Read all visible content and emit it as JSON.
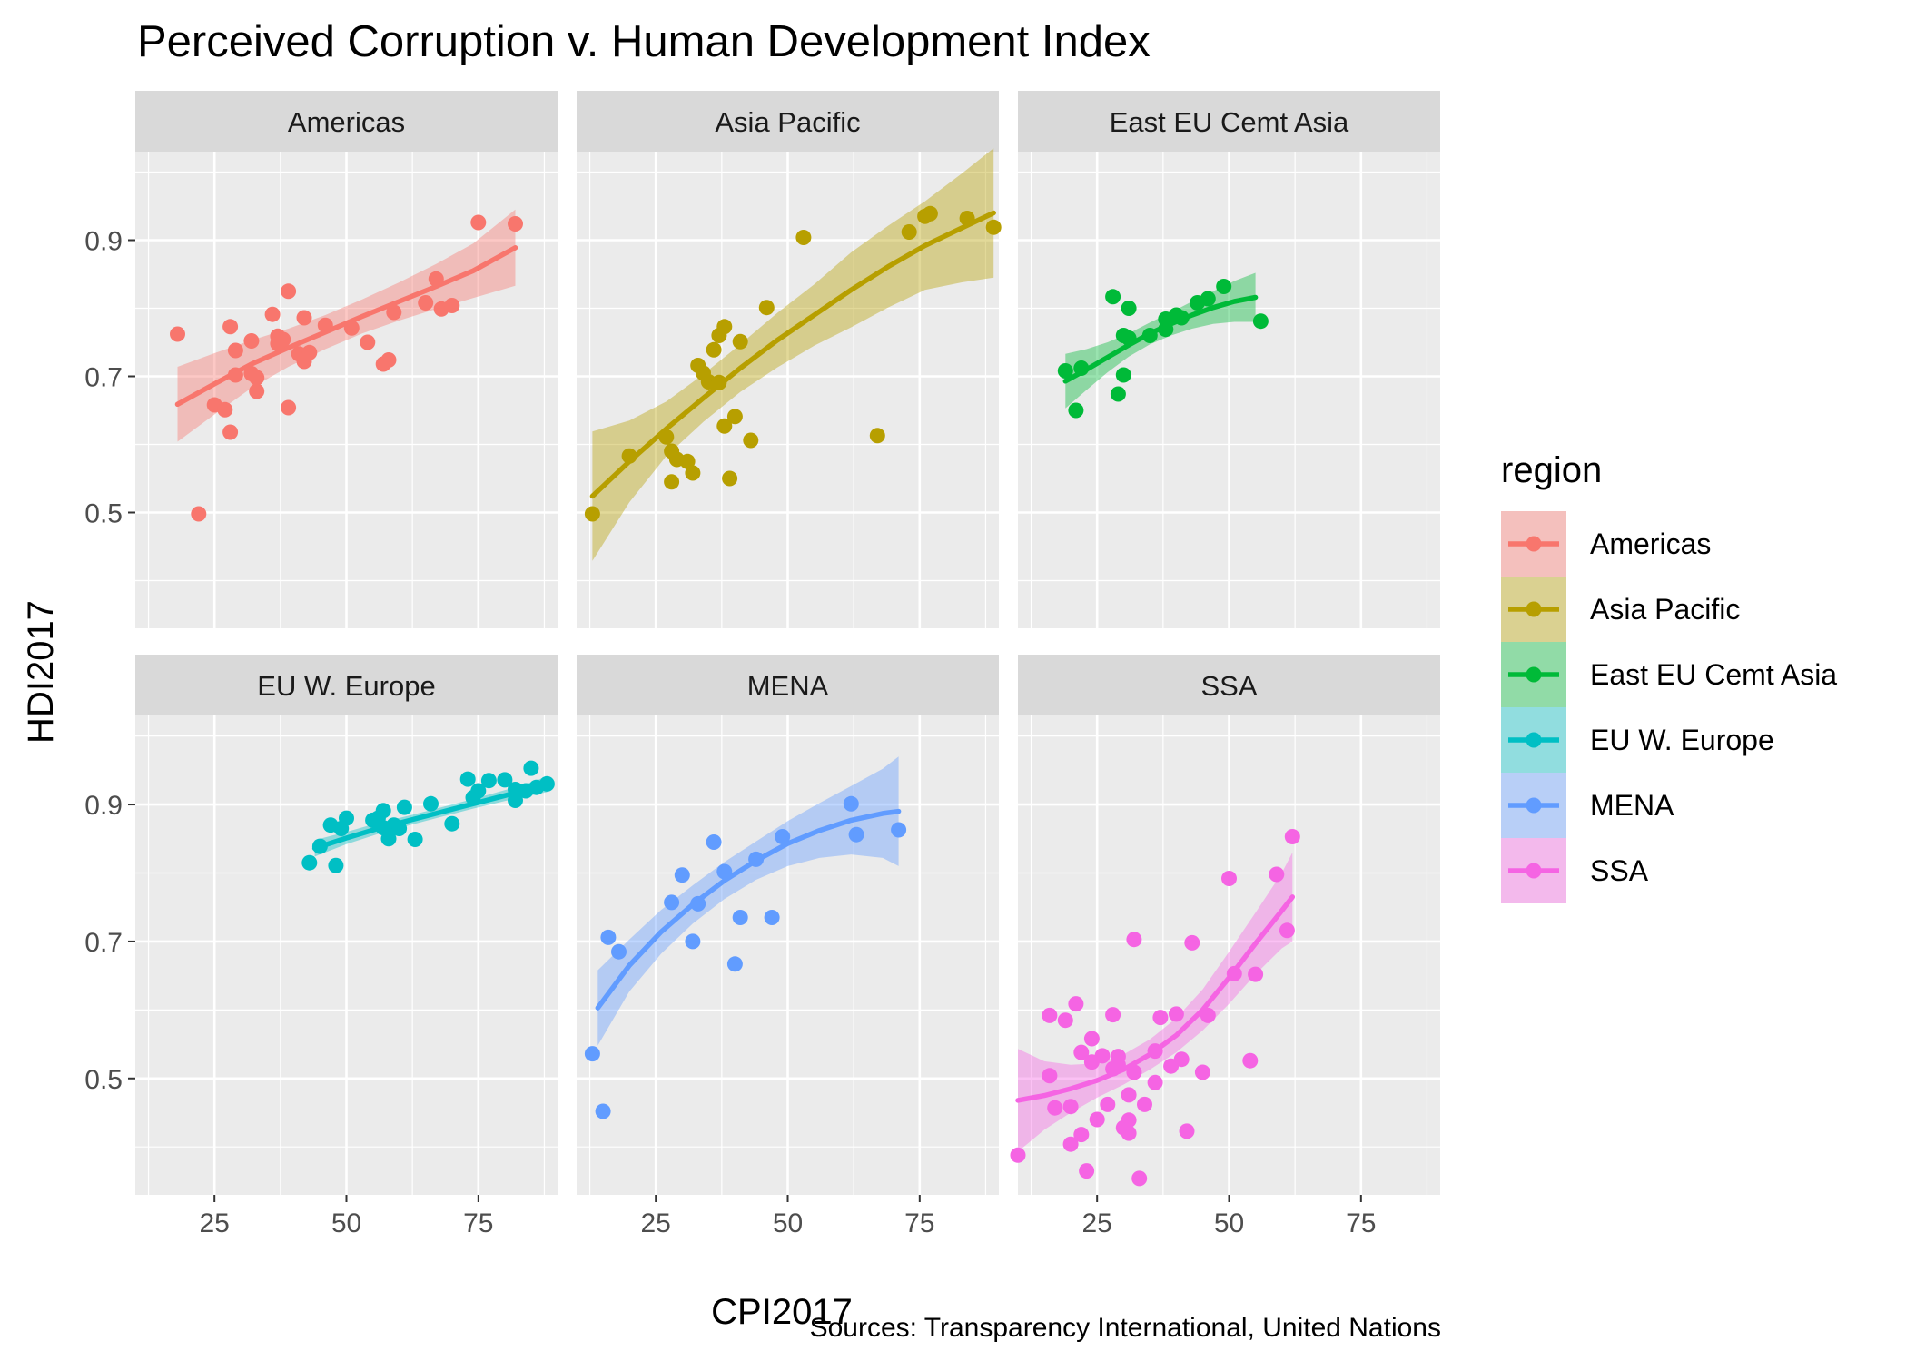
{
  "chart_data": {
    "type": "scatter",
    "title": "Perceived Corruption v. Human Development Index",
    "xlabel": "CPI2017",
    "ylabel": "HDI2017",
    "caption": "Sources: Transparency International, United Nations",
    "legend": {
      "title": "region",
      "position": "right"
    },
    "grid": true,
    "xlim": [
      10,
      90
    ],
    "ylim": [
      0.33,
      1.03
    ],
    "x_ticks": [
      "25",
      "50",
      "75"
    ],
    "y_ticks": [
      "0.5",
      "0.7",
      "0.9"
    ],
    "panels": [
      {
        "name": "Americas",
        "color": "#F8766D",
        "points": [
          [
            18,
            0.762
          ],
          [
            22,
            0.498
          ],
          [
            25,
            0.658
          ],
          [
            27,
            0.651
          ],
          [
            28,
            0.618
          ],
          [
            28,
            0.773
          ],
          [
            29,
            0.738
          ],
          [
            29,
            0.702
          ],
          [
            32,
            0.752
          ],
          [
            32,
            0.704
          ],
          [
            33,
            0.678
          ],
          [
            33,
            0.698
          ],
          [
            36,
            0.791
          ],
          [
            37,
            0.759
          ],
          [
            37,
            0.748
          ],
          [
            38,
            0.754
          ],
          [
            39,
            0.654
          ],
          [
            39,
            0.825
          ],
          [
            41,
            0.733
          ],
          [
            42,
            0.786
          ],
          [
            42,
            0.722
          ],
          [
            43,
            0.735
          ],
          [
            46,
            0.775
          ],
          [
            51,
            0.771
          ],
          [
            54,
            0.75
          ],
          [
            57,
            0.718
          ],
          [
            58,
            0.724
          ],
          [
            59,
            0.794
          ],
          [
            65,
            0.808
          ],
          [
            67,
            0.843
          ],
          [
            68,
            0.799
          ],
          [
            70,
            0.804
          ],
          [
            75,
            0.926
          ],
          [
            82,
            0.924
          ]
        ],
        "fit": [
          [
            18,
            0.659
          ],
          [
            25,
            0.689
          ],
          [
            32,
            0.718
          ],
          [
            39,
            0.742
          ],
          [
            46,
            0.765
          ],
          [
            53,
            0.788
          ],
          [
            60,
            0.81
          ],
          [
            67,
            0.832
          ],
          [
            74,
            0.855
          ],
          [
            82,
            0.889
          ]
        ],
        "band": [
          0.055,
          0.045,
          0.035,
          0.028,
          0.025,
          0.025,
          0.028,
          0.033,
          0.04,
          0.056
        ]
      },
      {
        "name": "Asia Pacific",
        "color": "#B79F00",
        "points": [
          [
            13,
            0.498
          ],
          [
            20,
            0.583
          ],
          [
            27,
            0.611
          ],
          [
            28,
            0.59
          ],
          [
            28,
            0.545
          ],
          [
            29,
            0.578
          ],
          [
            31,
            0.575
          ],
          [
            32,
            0.558
          ],
          [
            33,
            0.716
          ],
          [
            34,
            0.705
          ],
          [
            35,
            0.692
          ],
          [
            36,
            0.739
          ],
          [
            37,
            0.76
          ],
          [
            37,
            0.691
          ],
          [
            38,
            0.773
          ],
          [
            38,
            0.627
          ],
          [
            39,
            0.55
          ],
          [
            40,
            0.641
          ],
          [
            41,
            0.751
          ],
          [
            43,
            0.606
          ],
          [
            46,
            0.801
          ],
          [
            53,
            0.904
          ],
          [
            67,
            0.613
          ],
          [
            73,
            0.912
          ],
          [
            76,
            0.935
          ],
          [
            77,
            0.939
          ],
          [
            84,
            0.932
          ],
          [
            89,
            0.919
          ]
        ],
        "fit": [
          [
            13,
            0.524
          ],
          [
            20,
            0.575
          ],
          [
            27,
            0.623
          ],
          [
            34,
            0.668
          ],
          [
            41,
            0.712
          ],
          [
            48,
            0.753
          ],
          [
            55,
            0.79
          ],
          [
            62,
            0.827
          ],
          [
            69,
            0.861
          ],
          [
            76,
            0.892
          ],
          [
            83,
            0.918
          ],
          [
            89,
            0.94
          ]
        ],
        "band": [
          0.095,
          0.06,
          0.04,
          0.035,
          0.035,
          0.04,
          0.045,
          0.055,
          0.06,
          0.065,
          0.08,
          0.095
        ]
      },
      {
        "name": "East EU Cemt Asia",
        "color": "#00BA38",
        "points": [
          [
            19,
            0.708
          ],
          [
            21,
            0.65
          ],
          [
            22,
            0.712
          ],
          [
            28,
            0.817
          ],
          [
            29,
            0.674
          ],
          [
            30,
            0.76
          ],
          [
            30,
            0.702
          ],
          [
            31,
            0.8
          ],
          [
            31,
            0.756
          ],
          [
            35,
            0.76
          ],
          [
            38,
            0.769
          ],
          [
            38,
            0.784
          ],
          [
            40,
            0.79
          ],
          [
            41,
            0.786
          ],
          [
            44,
            0.808
          ],
          [
            46,
            0.814
          ],
          [
            49,
            0.832
          ],
          [
            56,
            0.781
          ]
        ],
        "fit": [
          [
            19,
            0.693
          ],
          [
            23,
            0.71
          ],
          [
            27,
            0.728
          ],
          [
            31,
            0.746
          ],
          [
            35,
            0.763
          ],
          [
            39,
            0.777
          ],
          [
            43,
            0.79
          ],
          [
            47,
            0.801
          ],
          [
            51,
            0.81
          ],
          [
            55,
            0.816
          ]
        ],
        "band": [
          0.04,
          0.03,
          0.022,
          0.017,
          0.016,
          0.017,
          0.02,
          0.024,
          0.03,
          0.036
        ]
      },
      {
        "name": "EU W. Europe",
        "color": "#00BFC4",
        "points": [
          [
            43,
            0.815
          ],
          [
            45,
            0.839
          ],
          [
            47,
            0.87
          ],
          [
            48,
            0.811
          ],
          [
            49,
            0.865
          ],
          [
            50,
            0.88
          ],
          [
            55,
            0.877
          ],
          [
            56,
            0.88
          ],
          [
            57,
            0.891
          ],
          [
            57,
            0.866
          ],
          [
            58,
            0.85
          ],
          [
            59,
            0.87
          ],
          [
            60,
            0.865
          ],
          [
            61,
            0.896
          ],
          [
            63,
            0.849
          ],
          [
            66,
            0.901
          ],
          [
            70,
            0.872
          ],
          [
            73,
            0.937
          ],
          [
            74,
            0.91
          ],
          [
            75,
            0.92
          ],
          [
            77,
            0.935
          ],
          [
            80,
            0.936
          ],
          [
            82,
            0.922
          ],
          [
            82,
            0.906
          ],
          [
            84,
            0.92
          ],
          [
            85,
            0.953
          ],
          [
            86,
            0.925
          ],
          [
            88,
            0.93
          ]
        ],
        "fit": [
          [
            44,
            0.836
          ],
          [
            50,
            0.851
          ],
          [
            56,
            0.865
          ],
          [
            62,
            0.877
          ],
          [
            68,
            0.889
          ],
          [
            74,
            0.901
          ],
          [
            80,
            0.913
          ],
          [
            86,
            0.925
          ],
          [
            88,
            0.93
          ]
        ],
        "band": [
          0.012,
          0.009,
          0.008,
          0.007,
          0.007,
          0.007,
          0.008,
          0.01,
          0.012
        ]
      },
      {
        "name": "MENA",
        "color": "#619CFF",
        "points": [
          [
            13,
            0.536
          ],
          [
            15,
            0.452
          ],
          [
            16,
            0.706
          ],
          [
            18,
            0.685
          ],
          [
            28,
            0.757
          ],
          [
            30,
            0.797
          ],
          [
            32,
            0.7
          ],
          [
            33,
            0.755
          ],
          [
            36,
            0.845
          ],
          [
            38,
            0.802
          ],
          [
            40,
            0.667
          ],
          [
            41,
            0.735
          ],
          [
            44,
            0.82
          ],
          [
            47,
            0.735
          ],
          [
            49,
            0.853
          ],
          [
            62,
            0.901
          ],
          [
            63,
            0.856
          ],
          [
            71,
            0.863
          ]
        ],
        "fit": [
          [
            14,
            0.603
          ],
          [
            20,
            0.665
          ],
          [
            26,
            0.714
          ],
          [
            32,
            0.754
          ],
          [
            38,
            0.789
          ],
          [
            44,
            0.818
          ],
          [
            50,
            0.843
          ],
          [
            56,
            0.862
          ],
          [
            62,
            0.877
          ],
          [
            68,
            0.887
          ],
          [
            71,
            0.89
          ]
        ],
        "band": [
          0.055,
          0.038,
          0.032,
          0.028,
          0.027,
          0.028,
          0.033,
          0.04,
          0.05,
          0.065,
          0.08
        ]
      },
      {
        "name": "SSA",
        "color": "#F564E3",
        "points": [
          [
            10,
            0.388
          ],
          [
            16,
            0.504
          ],
          [
            16,
            0.592
          ],
          [
            17,
            0.457
          ],
          [
            19,
            0.585
          ],
          [
            20,
            0.404
          ],
          [
            20,
            0.459
          ],
          [
            21,
            0.609
          ],
          [
            22,
            0.538
          ],
          [
            22,
            0.418
          ],
          [
            23,
            0.365
          ],
          [
            24,
            0.524
          ],
          [
            24,
            0.558
          ],
          [
            25,
            0.44
          ],
          [
            26,
            0.533
          ],
          [
            27,
            0.462
          ],
          [
            28,
            0.514
          ],
          [
            28,
            0.593
          ],
          [
            29,
            0.52
          ],
          [
            29,
            0.532
          ],
          [
            30,
            0.428
          ],
          [
            31,
            0.476
          ],
          [
            31,
            0.42
          ],
          [
            31,
            0.439
          ],
          [
            32,
            0.509
          ],
          [
            32,
            0.703
          ],
          [
            33,
            0.354
          ],
          [
            34,
            0.462
          ],
          [
            36,
            0.54
          ],
          [
            36,
            0.494
          ],
          [
            37,
            0.589
          ],
          [
            39,
            0.518
          ],
          [
            40,
            0.594
          ],
          [
            41,
            0.528
          ],
          [
            42,
            0.423
          ],
          [
            43,
            0.698
          ],
          [
            45,
            0.509
          ],
          [
            46,
            0.592
          ],
          [
            50,
            0.792
          ],
          [
            51,
            0.653
          ],
          [
            54,
            0.526
          ],
          [
            55,
            0.652
          ],
          [
            59,
            0.798
          ],
          [
            61,
            0.716
          ],
          [
            62,
            0.853
          ]
        ],
        "fit": [
          [
            10,
            0.468
          ],
          [
            15,
            0.475
          ],
          [
            20,
            0.485
          ],
          [
            25,
            0.497
          ],
          [
            30,
            0.513
          ],
          [
            35,
            0.535
          ],
          [
            40,
            0.563
          ],
          [
            45,
            0.6
          ],
          [
            50,
            0.647
          ],
          [
            55,
            0.697
          ],
          [
            60,
            0.745
          ],
          [
            62,
            0.765
          ]
        ],
        "band": [
          0.075,
          0.05,
          0.035,
          0.025,
          0.022,
          0.022,
          0.025,
          0.03,
          0.038,
          0.045,
          0.055,
          0.065
        ]
      }
    ]
  }
}
